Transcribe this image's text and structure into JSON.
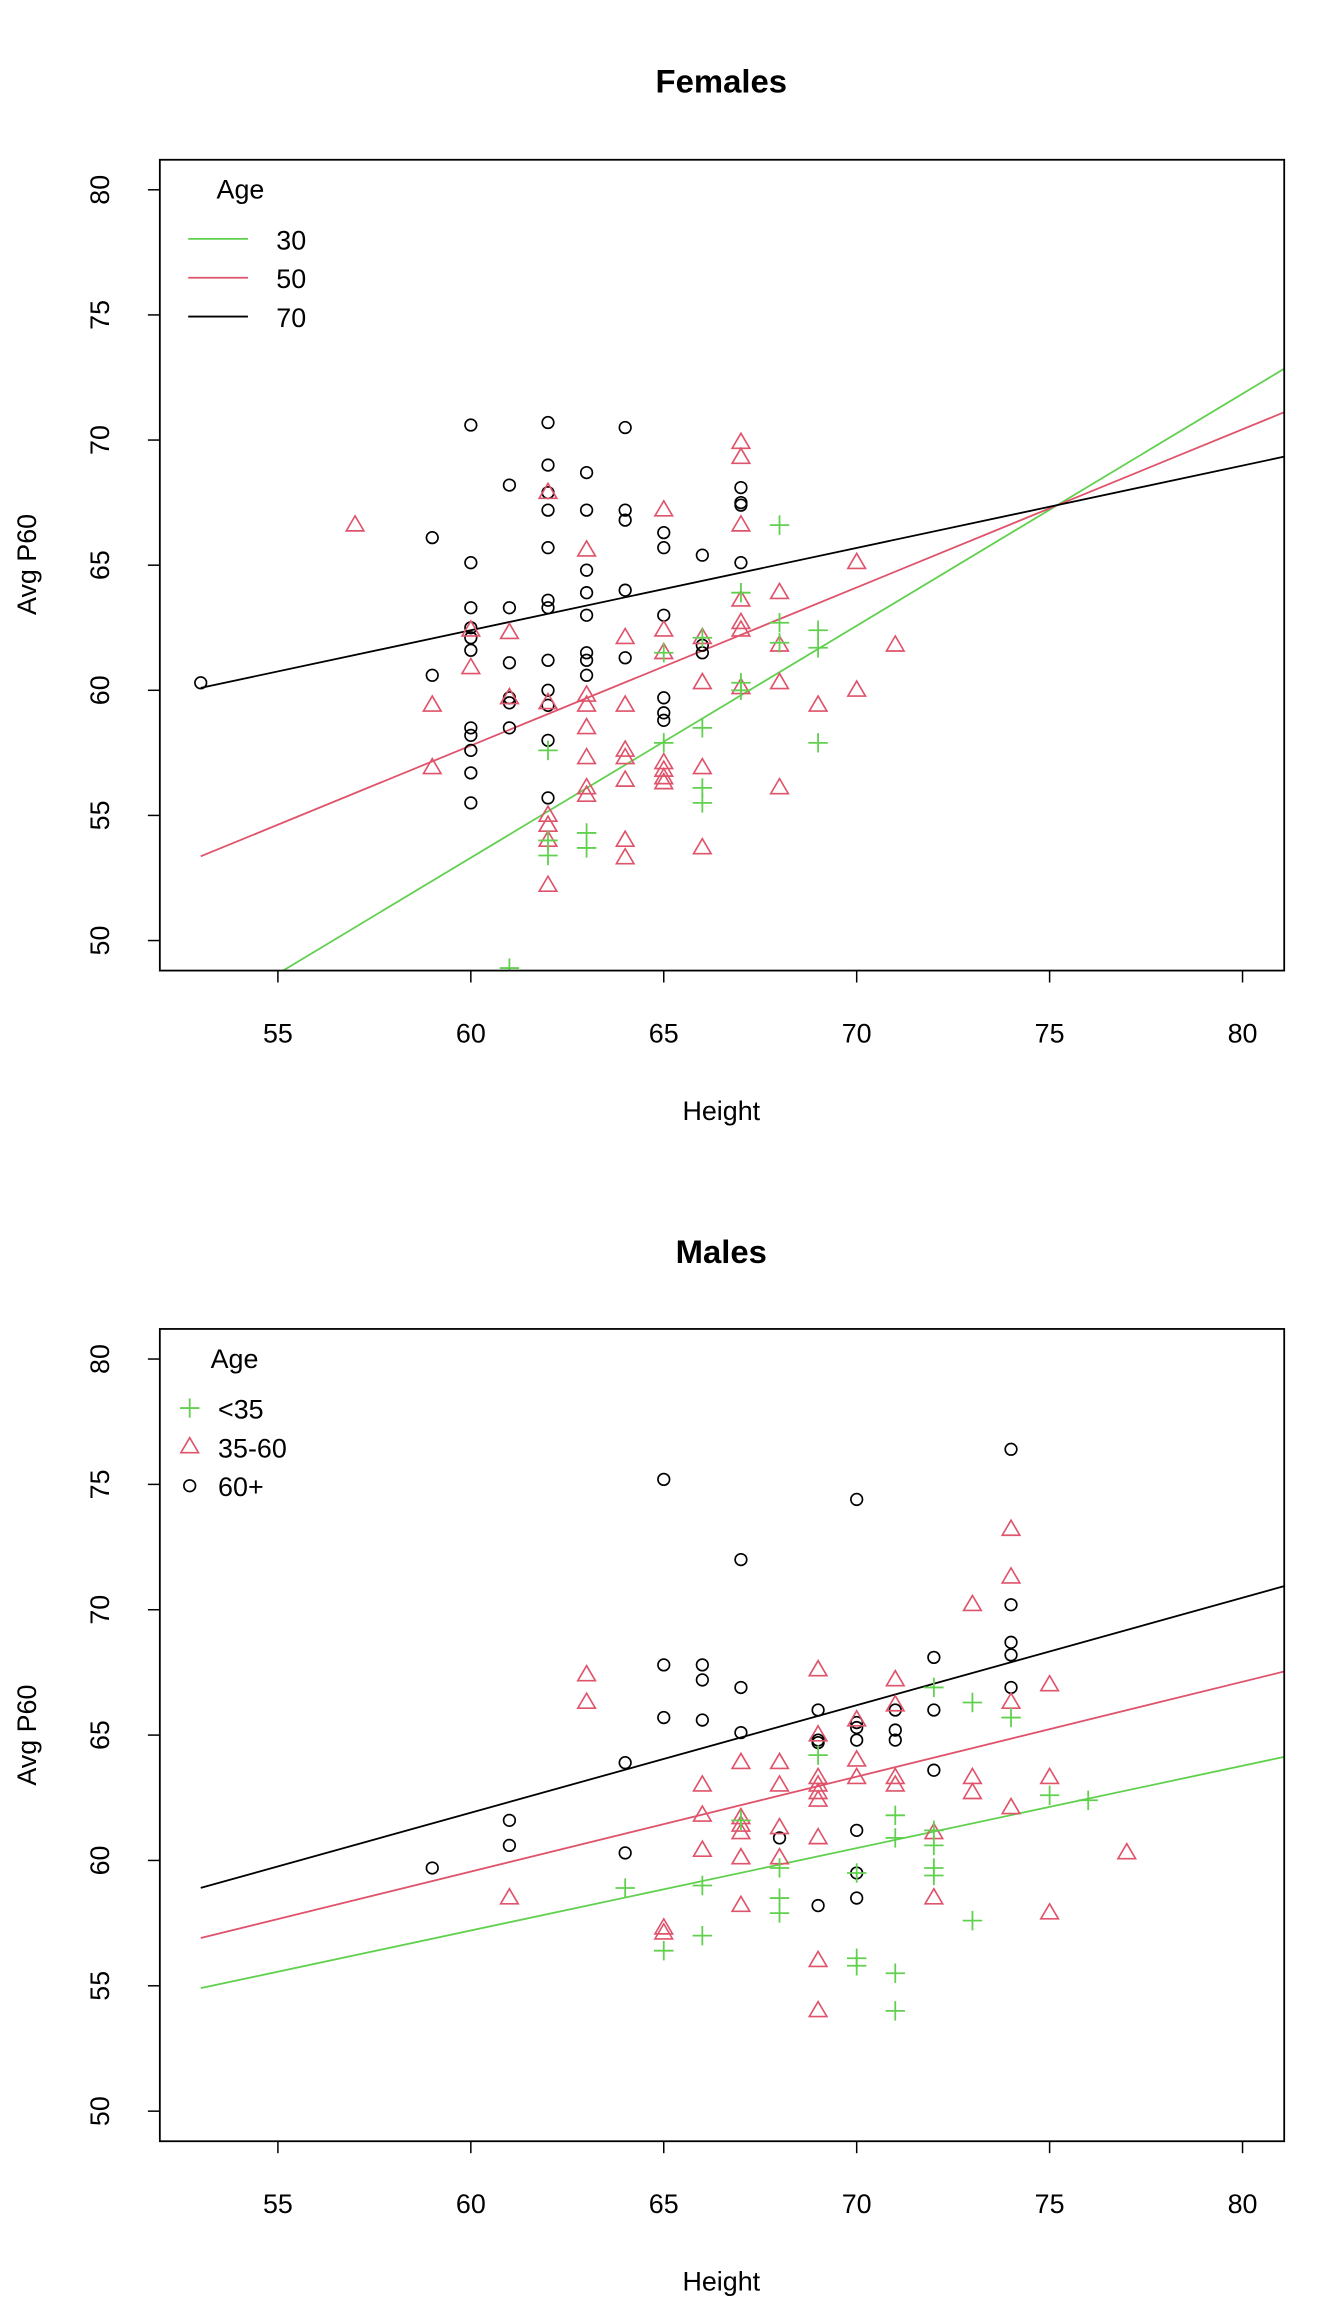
{
  "colors": {
    "30": "#61D04F",
    "50": "#DF536B",
    "70": "#000000"
  },
  "chart_data": [
    {
      "type": "scatter",
      "title": "Females",
      "xlabel": "Height",
      "ylabel": "Avg P60",
      "xlim": [
        51.94,
        81.08
      ],
      "ylim": [
        48.8,
        81.2
      ],
      "xticks": [
        55,
        60,
        65,
        70,
        75,
        80
      ],
      "yticks": [
        50,
        55,
        60,
        65,
        70,
        75,
        80
      ],
      "legend": {
        "title": "Age",
        "position": "top-left",
        "style": "line",
        "entries": [
          {
            "label": "30",
            "color": "#61D04F"
          },
          {
            "label": "50",
            "color": "#DF536B"
          },
          {
            "label": "70",
            "color": "#000000"
          }
        ]
      },
      "lines": [
        {
          "name": "30",
          "color": "#61D04F",
          "intercept": -2.31,
          "slope": 0.927
        },
        {
          "name": "50",
          "color": "#DF536B",
          "intercept": 19.87,
          "slope": 0.632
        },
        {
          "name": "70",
          "color": "#000000",
          "intercept": 42.66,
          "slope": 0.329
        }
      ],
      "series": [
        {
          "name": "60+",
          "shape": "circle",
          "color": "#000000",
          "points": [
            [
              53,
              60.3
            ],
            [
              59,
              66.1
            ],
            [
              59,
              60.6
            ],
            [
              60,
              70.6
            ],
            [
              60,
              65.1
            ],
            [
              60,
              63.3
            ],
            [
              60,
              62.5
            ],
            [
              60,
              62.1
            ],
            [
              60,
              61.6
            ],
            [
              60,
              58.5
            ],
            [
              60,
              58.2
            ],
            [
              60,
              57.6
            ],
            [
              60,
              56.7
            ],
            [
              60,
              55.5
            ],
            [
              61,
              68.2
            ],
            [
              61,
              63.3
            ],
            [
              61,
              61.1
            ],
            [
              61,
              59.7
            ],
            [
              61,
              59.5
            ],
            [
              61,
              58.5
            ],
            [
              62,
              70.7
            ],
            [
              62,
              69.0
            ],
            [
              62,
              67.9
            ],
            [
              62,
              67.2
            ],
            [
              62,
              65.7
            ],
            [
              62,
              63.6
            ],
            [
              62,
              63.3
            ],
            [
              62,
              61.2
            ],
            [
              62,
              60.0
            ],
            [
              62,
              59.4
            ],
            [
              62,
              58.0
            ],
            [
              62,
              55.7
            ],
            [
              63,
              68.7
            ],
            [
              63,
              67.2
            ],
            [
              63,
              64.8
            ],
            [
              63,
              63.9
            ],
            [
              63,
              63.0
            ],
            [
              63,
              61.5
            ],
            [
              63,
              61.2
            ],
            [
              63,
              60.6
            ],
            [
              64,
              70.5
            ],
            [
              64,
              67.2
            ],
            [
              64,
              66.8
            ],
            [
              64,
              64.0
            ],
            [
              64,
              61.3
            ],
            [
              65,
              66.3
            ],
            [
              65,
              65.7
            ],
            [
              65,
              63.0
            ],
            [
              65,
              59.7
            ],
            [
              65,
              59.1
            ],
            [
              65,
              58.8
            ],
            [
              66,
              65.4
            ],
            [
              66,
              61.8
            ],
            [
              66,
              61.5
            ],
            [
              67,
              68.1
            ],
            [
              67,
              67.5
            ],
            [
              67,
              67.4
            ],
            [
              67,
              65.1
            ]
          ]
        },
        {
          "name": "35-60",
          "shape": "triangle",
          "color": "#DF536B",
          "points": [
            [
              57,
              66.6
            ],
            [
              59,
              59.4
            ],
            [
              59,
              56.9
            ],
            [
              60,
              62.4
            ],
            [
              60,
              60.9
            ],
            [
              61,
              62.3
            ],
            [
              61,
              59.7
            ],
            [
              62,
              67.9
            ],
            [
              62,
              59.5
            ],
            [
              62,
              55.0
            ],
            [
              62,
              54.6
            ],
            [
              62,
              54.0
            ],
            [
              62,
              52.2
            ],
            [
              63,
              65.6
            ],
            [
              63,
              59.8
            ],
            [
              63,
              59.4
            ],
            [
              63,
              58.5
            ],
            [
              63,
              57.3
            ],
            [
              63,
              56.1
            ],
            [
              63,
              55.8
            ],
            [
              64,
              62.1
            ],
            [
              64,
              59.4
            ],
            [
              64,
              57.6
            ],
            [
              64,
              57.3
            ],
            [
              64,
              56.4
            ],
            [
              64,
              54.0
            ],
            [
              64,
              53.3
            ],
            [
              65,
              67.2
            ],
            [
              65,
              62.4
            ],
            [
              65,
              61.5
            ],
            [
              65,
              57.1
            ],
            [
              65,
              56.8
            ],
            [
              65,
              56.5
            ],
            [
              65,
              56.3
            ],
            [
              66,
              62.1
            ],
            [
              66,
              60.3
            ],
            [
              66,
              56.9
            ],
            [
              66,
              53.7
            ],
            [
              67,
              69.9
            ],
            [
              67,
              69.3
            ],
            [
              67,
              66.6
            ],
            [
              67,
              63.6
            ],
            [
              67,
              62.7
            ],
            [
              67,
              62.4
            ],
            [
              67,
              60.1
            ],
            [
              68,
              63.9
            ],
            [
              68,
              61.8
            ],
            [
              68,
              60.3
            ],
            [
              68,
              56.1
            ],
            [
              69,
              59.4
            ],
            [
              70,
              65.1
            ],
            [
              70,
              60.0
            ],
            [
              71,
              61.8
            ]
          ]
        },
        {
          "name": "<35",
          "shape": "plus",
          "color": "#61D04F",
          "points": [
            [
              61,
              48.9
            ],
            [
              62,
              57.6
            ],
            [
              62,
              54.0
            ],
            [
              62,
              53.4
            ],
            [
              63,
              54.3
            ],
            [
              63,
              53.7
            ],
            [
              65,
              61.5
            ],
            [
              65,
              57.9
            ],
            [
              66,
              62.1
            ],
            [
              66,
              58.5
            ],
            [
              66,
              56.1
            ],
            [
              66,
              55.5
            ],
            [
              67,
              63.9
            ],
            [
              67,
              60.3
            ],
            [
              67,
              60.0
            ],
            [
              68,
              66.6
            ],
            [
              68,
              62.7
            ],
            [
              68,
              61.9
            ],
            [
              69,
              62.4
            ],
            [
              69,
              61.7
            ],
            [
              69,
              57.9
            ]
          ]
        }
      ]
    },
    {
      "type": "scatter",
      "title": "Males",
      "xlabel": "Height",
      "ylabel": "Avg P60",
      "xlim": [
        51.94,
        81.08
      ],
      "ylim": [
        48.8,
        81.2
      ],
      "xticks": [
        55,
        60,
        65,
        70,
        75,
        80
      ],
      "yticks": [
        50,
        55,
        60,
        65,
        70,
        75,
        80
      ],
      "legend": {
        "title": "Age",
        "position": "top-left",
        "style": "point",
        "entries": [
          {
            "label": "<35",
            "color": "#61D04F",
            "shape": "plus"
          },
          {
            "label": "35-60",
            "color": "#DF536B",
            "shape": "triangle"
          },
          {
            "label": "60+",
            "color": "#000000",
            "shape": "circle"
          }
        ]
      },
      "lines": [
        {
          "name": "<35",
          "color": "#61D04F",
          "intercept": 37.49,
          "slope": 0.3286
        },
        {
          "name": "35-60",
          "color": "#DF536B",
          "intercept": 36.84,
          "slope": 0.3786
        },
        {
          "name": "60+",
          "color": "#000000",
          "intercept": 36.19,
          "slope": 0.4286
        }
      ],
      "series": [
        {
          "name": "60+",
          "shape": "circle",
          "color": "#000000",
          "points": [
            [
              59,
              59.7
            ],
            [
              61,
              61.6
            ],
            [
              61,
              60.6
            ],
            [
              64,
              63.9
            ],
            [
              64,
              60.3
            ],
            [
              65,
              75.2
            ],
            [
              65,
              67.8
            ],
            [
              65,
              65.7
            ],
            [
              66,
              67.8
            ],
            [
              66,
              67.2
            ],
            [
              66,
              65.6
            ],
            [
              67,
              72.0
            ],
            [
              67,
              66.9
            ],
            [
              67,
              65.1
            ],
            [
              68,
              60.9
            ],
            [
              69,
              66.0
            ],
            [
              69,
              64.8
            ],
            [
              69,
              64.7
            ],
            [
              69,
              58.2
            ],
            [
              70,
              74.4
            ],
            [
              70,
              65.5
            ],
            [
              70,
              65.3
            ],
            [
              70,
              64.8
            ],
            [
              70,
              61.2
            ],
            [
              70,
              59.5
            ],
            [
              70,
              58.5
            ],
            [
              71,
              66.0
            ],
            [
              71,
              65.2
            ],
            [
              71,
              64.8
            ],
            [
              72,
              68.1
            ],
            [
              72,
              66.0
            ],
            [
              72,
              63.6
            ],
            [
              74,
              76.4
            ],
            [
              74,
              70.2
            ],
            [
              74,
              68.7
            ],
            [
              74,
              68.2
            ],
            [
              74,
              66.9
            ]
          ]
        },
        {
          "name": "35-60",
          "shape": "triangle",
          "color": "#DF536B",
          "points": [
            [
              61,
              58.5
            ],
            [
              63,
              67.4
            ],
            [
              63,
              66.3
            ],
            [
              65,
              57.3
            ],
            [
              65,
              57.1
            ],
            [
              66,
              63.0
            ],
            [
              66,
              61.8
            ],
            [
              66,
              60.4
            ],
            [
              67,
              63.9
            ],
            [
              67,
              61.7
            ],
            [
              67,
              61.4
            ],
            [
              67,
              61.1
            ],
            [
              67,
              60.1
            ],
            [
              67,
              58.2
            ],
            [
              68,
              63.9
            ],
            [
              68,
              63.0
            ],
            [
              68,
              61.3
            ],
            [
              68,
              60.1
            ],
            [
              69,
              67.6
            ],
            [
              69,
              65.0
            ],
            [
              69,
              63.3
            ],
            [
              69,
              63.0
            ],
            [
              69,
              62.7
            ],
            [
              69,
              62.4
            ],
            [
              69,
              60.9
            ],
            [
              69,
              56.0
            ],
            [
              69,
              54.0
            ],
            [
              70,
              65.6
            ],
            [
              70,
              64.0
            ],
            [
              70,
              63.3
            ],
            [
              71,
              67.2
            ],
            [
              71,
              66.2
            ],
            [
              71,
              63.3
            ],
            [
              71,
              63.0
            ],
            [
              72,
              61.1
            ],
            [
              72,
              58.5
            ],
            [
              73,
              70.2
            ],
            [
              73,
              63.3
            ],
            [
              73,
              62.7
            ],
            [
              74,
              73.2
            ],
            [
              74,
              71.3
            ],
            [
              74,
              66.3
            ],
            [
              74,
              62.1
            ],
            [
              75,
              67.0
            ],
            [
              75,
              63.3
            ],
            [
              75,
              57.9
            ],
            [
              77,
              60.3
            ]
          ]
        },
        {
          "name": "<35",
          "shape": "plus",
          "color": "#61D04F",
          "points": [
            [
              64,
              58.9
            ],
            [
              65,
              56.4
            ],
            [
              66,
              59.0
            ],
            [
              66,
              57.0
            ],
            [
              67,
              61.6
            ],
            [
              68,
              59.7
            ],
            [
              68,
              58.5
            ],
            [
              68,
              57.9
            ],
            [
              69,
              64.2
            ],
            [
              70,
              59.5
            ],
            [
              70,
              56.1
            ],
            [
              70,
              55.8
            ],
            [
              71,
              61.8
            ],
            [
              71,
              60.9
            ],
            [
              71,
              55.5
            ],
            [
              71,
              54.0
            ],
            [
              72,
              66.9
            ],
            [
              72,
              61.2
            ],
            [
              72,
              60.6
            ],
            [
              72,
              59.7
            ],
            [
              72,
              59.4
            ],
            [
              73,
              66.3
            ],
            [
              73,
              57.6
            ],
            [
              74,
              65.7
            ],
            [
              75,
              62.6
            ],
            [
              76,
              62.4
            ]
          ]
        }
      ]
    }
  ]
}
